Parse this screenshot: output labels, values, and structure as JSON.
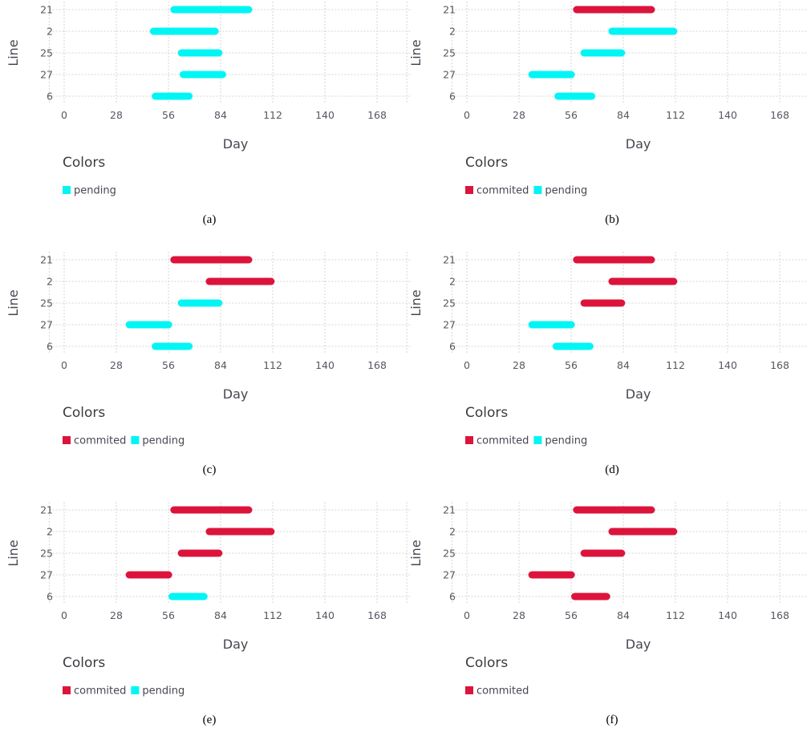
{
  "chart_data": [
    {
      "type": "gantt",
      "caption": "(a)",
      "xlabel": "Day",
      "ylabel": "Line",
      "xticks": [
        0,
        28,
        56,
        84,
        112,
        140,
        168
      ],
      "xlim": [
        -8,
        186
      ],
      "categories": [
        "21",
        "2",
        "25",
        "27",
        "6"
      ],
      "legend_title": "Colors",
      "legend": [
        {
          "label": "pending",
          "color": "#00f5f5"
        }
      ],
      "bars": [
        {
          "line": "21",
          "start": 57,
          "end": 101,
          "status": "pending"
        },
        {
          "line": "2",
          "start": 46,
          "end": 83,
          "status": "pending"
        },
        {
          "line": "25",
          "start": 61,
          "end": 85,
          "status": "pending"
        },
        {
          "line": "27",
          "start": 62,
          "end": 87,
          "status": "pending"
        },
        {
          "line": "6",
          "start": 47,
          "end": 69,
          "status": "pending"
        }
      ]
    },
    {
      "type": "gantt",
      "caption": "(b)",
      "xlabel": "Day",
      "ylabel": "Line",
      "xticks": [
        0,
        28,
        56,
        84,
        112,
        140,
        168
      ],
      "xlim": [
        -8,
        186
      ],
      "categories": [
        "21",
        "2",
        "25",
        "27",
        "6"
      ],
      "legend_title": "Colors",
      "legend": [
        {
          "label": "commited",
          "color": "#dc143c"
        },
        {
          "label": "pending",
          "color": "#00f5f5"
        }
      ],
      "bars": [
        {
          "line": "21",
          "start": 57,
          "end": 101,
          "status": "commited"
        },
        {
          "line": "2",
          "start": 76,
          "end": 113,
          "status": "pending"
        },
        {
          "line": "25",
          "start": 61,
          "end": 85,
          "status": "pending"
        },
        {
          "line": "27",
          "start": 33,
          "end": 58,
          "status": "pending"
        },
        {
          "line": "6",
          "start": 47,
          "end": 69,
          "status": "pending"
        }
      ]
    },
    {
      "type": "gantt",
      "caption": "(c)",
      "xlabel": "Day",
      "ylabel": "Line",
      "xticks": [
        0,
        28,
        56,
        84,
        112,
        140,
        168
      ],
      "xlim": [
        -8,
        186
      ],
      "categories": [
        "21",
        "2",
        "25",
        "27",
        "6"
      ],
      "legend_title": "Colors",
      "legend": [
        {
          "label": "commited",
          "color": "#dc143c"
        },
        {
          "label": "pending",
          "color": "#00f5f5"
        }
      ],
      "bars": [
        {
          "line": "21",
          "start": 57,
          "end": 101,
          "status": "commited"
        },
        {
          "line": "2",
          "start": 76,
          "end": 113,
          "status": "commited"
        },
        {
          "line": "25",
          "start": 61,
          "end": 85,
          "status": "pending"
        },
        {
          "line": "27",
          "start": 33,
          "end": 58,
          "status": "pending"
        },
        {
          "line": "6",
          "start": 47,
          "end": 69,
          "status": "pending"
        }
      ]
    },
    {
      "type": "gantt",
      "caption": "(d)",
      "xlabel": "Day",
      "ylabel": "Line",
      "xticks": [
        0,
        28,
        56,
        84,
        112,
        140,
        168
      ],
      "xlim": [
        -8,
        186
      ],
      "categories": [
        "21",
        "2",
        "25",
        "27",
        "6"
      ],
      "legend_title": "Colors",
      "legend": [
        {
          "label": "commited",
          "color": "#dc143c"
        },
        {
          "label": "pending",
          "color": "#00f5f5"
        }
      ],
      "bars": [
        {
          "line": "21",
          "start": 57,
          "end": 101,
          "status": "commited"
        },
        {
          "line": "2",
          "start": 76,
          "end": 113,
          "status": "commited"
        },
        {
          "line": "25",
          "start": 61,
          "end": 85,
          "status": "commited"
        },
        {
          "line": "27",
          "start": 33,
          "end": 58,
          "status": "pending"
        },
        {
          "line": "6",
          "start": 46,
          "end": 68,
          "status": "pending"
        }
      ]
    },
    {
      "type": "gantt",
      "caption": "(e)",
      "xlabel": "Day",
      "ylabel": "Line",
      "xticks": [
        0,
        28,
        56,
        84,
        112,
        140,
        168
      ],
      "xlim": [
        -8,
        186
      ],
      "categories": [
        "21",
        "2",
        "25",
        "27",
        "6"
      ],
      "legend_title": "Colors",
      "legend": [
        {
          "label": "commited",
          "color": "#dc143c"
        },
        {
          "label": "pending",
          "color": "#00f5f5"
        }
      ],
      "bars": [
        {
          "line": "21",
          "start": 57,
          "end": 101,
          "status": "commited"
        },
        {
          "line": "2",
          "start": 76,
          "end": 113,
          "status": "commited"
        },
        {
          "line": "25",
          "start": 61,
          "end": 85,
          "status": "commited"
        },
        {
          "line": "27",
          "start": 33,
          "end": 58,
          "status": "commited"
        },
        {
          "line": "6",
          "start": 56,
          "end": 77,
          "status": "pending"
        }
      ]
    },
    {
      "type": "gantt",
      "caption": "(f)",
      "xlabel": "Day",
      "ylabel": "Line",
      "xticks": [
        0,
        28,
        56,
        84,
        112,
        140,
        168
      ],
      "xlim": [
        -8,
        186
      ],
      "categories": [
        "21",
        "2",
        "25",
        "27",
        "6"
      ],
      "legend_title": "Colors",
      "legend": [
        {
          "label": "commited",
          "color": "#dc143c"
        }
      ],
      "bars": [
        {
          "line": "21",
          "start": 57,
          "end": 101,
          "status": "commited"
        },
        {
          "line": "2",
          "start": 76,
          "end": 113,
          "status": "commited"
        },
        {
          "line": "25",
          "start": 61,
          "end": 85,
          "status": "commited"
        },
        {
          "line": "27",
          "start": 33,
          "end": 58,
          "status": "commited"
        },
        {
          "line": "6",
          "start": 56,
          "end": 77,
          "status": "commited"
        }
      ]
    }
  ]
}
